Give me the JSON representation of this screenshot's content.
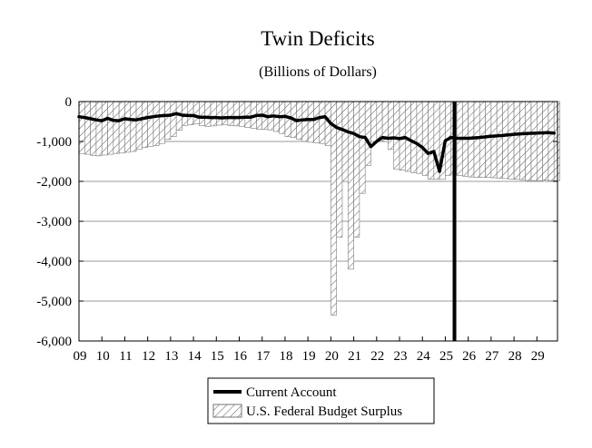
{
  "chart_data": {
    "type": "bar",
    "title": "Twin Deficits",
    "subtitle": "(Billions of Dollars)",
    "xlabel": "",
    "ylabel": "",
    "ylim": [
      -6000,
      0
    ],
    "yticks": [
      0,
      -1000,
      -2000,
      -3000,
      -4000,
      -5000,
      -6000
    ],
    "ytick_labels": [
      "0",
      "-1,000",
      "-2,000",
      "-3,000",
      "-4,000",
      "-5,000",
      "-6,000"
    ],
    "xlim": [
      2009.0,
      2029.9
    ],
    "xticks": [
      2009,
      2010,
      2011,
      2012,
      2013,
      2014,
      2015,
      2016,
      2017,
      2018,
      2019,
      2020,
      2021,
      2022,
      2023,
      2024,
      2025,
      2026,
      2027,
      2028,
      2029
    ],
    "xtick_labels": [
      "09",
      "10",
      "11",
      "12",
      "13",
      "14",
      "15",
      "16",
      "17",
      "18",
      "19",
      "20",
      "21",
      "22",
      "23",
      "24",
      "25",
      "26",
      "27",
      "28",
      "29"
    ],
    "grid": true,
    "legend_position": "bottom-center",
    "vertical_line_x": 2025.4,
    "series": [
      {
        "name": "Current Account",
        "kind": "line",
        "color": "#000000",
        "x": [
          2009.0,
          2009.25,
          2009.5,
          2009.75,
          2010.0,
          2010.25,
          2010.5,
          2010.75,
          2011.0,
          2011.25,
          2011.5,
          2011.75,
          2012.0,
          2012.25,
          2012.5,
          2012.75,
          2013.0,
          2013.25,
          2013.5,
          2013.75,
          2014.0,
          2014.25,
          2014.5,
          2014.75,
          2015.0,
          2015.25,
          2015.5,
          2015.75,
          2016.0,
          2016.25,
          2016.5,
          2016.75,
          2017.0,
          2017.25,
          2017.5,
          2017.75,
          2018.0,
          2018.25,
          2018.5,
          2018.75,
          2019.0,
          2019.25,
          2019.5,
          2019.75,
          2020.0,
          2020.25,
          2020.5,
          2020.75,
          2021.0,
          2021.25,
          2021.5,
          2021.75,
          2022.0,
          2022.25,
          2022.5,
          2022.75,
          2023.0,
          2023.25,
          2023.5,
          2023.75,
          2024.0,
          2024.25,
          2024.5,
          2024.75,
          2025.0,
          2025.25,
          2025.5,
          2025.75,
          2026.0,
          2026.5,
          2027.0,
          2027.5,
          2028.0,
          2028.5,
          2029.0,
          2029.5,
          2029.75
        ],
        "values": [
          -380,
          -400,
          -430,
          -460,
          -480,
          -420,
          -470,
          -480,
          -430,
          -450,
          -460,
          -430,
          -400,
          -380,
          -360,
          -350,
          -340,
          -300,
          -340,
          -350,
          -350,
          -390,
          -390,
          -400,
          -400,
          -410,
          -400,
          -400,
          -400,
          -390,
          -390,
          -350,
          -340,
          -380,
          -360,
          -380,
          -370,
          -410,
          -480,
          -460,
          -450,
          -450,
          -400,
          -380,
          -550,
          -650,
          -700,
          -760,
          -800,
          -880,
          -900,
          -1130,
          -1000,
          -900,
          -920,
          -910,
          -930,
          -900,
          -980,
          -1050,
          -1150,
          -1300,
          -1250,
          -1750,
          -980,
          -900,
          -920,
          -920,
          -920,
          -900,
          -870,
          -850,
          -820,
          -800,
          -790,
          -780,
          -790
        ]
      },
      {
        "name": "U.S. Federal Budget Surplus",
        "kind": "bar",
        "hatch": "diagonal",
        "x": [
          2009.0,
          2009.25,
          2009.5,
          2009.75,
          2010.0,
          2010.25,
          2010.5,
          2010.75,
          2011.0,
          2011.25,
          2011.5,
          2011.75,
          2012.0,
          2012.25,
          2012.5,
          2012.75,
          2013.0,
          2013.25,
          2013.5,
          2013.75,
          2014.0,
          2014.25,
          2014.5,
          2014.75,
          2015.0,
          2015.25,
          2015.5,
          2015.75,
          2016.0,
          2016.25,
          2016.5,
          2016.75,
          2017.0,
          2017.25,
          2017.5,
          2017.75,
          2018.0,
          2018.25,
          2018.5,
          2018.75,
          2019.0,
          2019.25,
          2019.5,
          2019.75,
          2020.0,
          2020.25,
          2020.5,
          2020.75,
          2021.0,
          2021.25,
          2021.5,
          2021.75,
          2022.0,
          2022.25,
          2022.5,
          2022.75,
          2023.0,
          2023.25,
          2023.5,
          2023.75,
          2024.0,
          2024.25,
          2024.5,
          2024.75,
          2025.0,
          2025.25,
          2025.5,
          2025.75,
          2026.0,
          2026.25,
          2026.5,
          2026.75,
          2027.0,
          2027.25,
          2027.5,
          2027.75,
          2028.0,
          2028.25,
          2028.5,
          2028.75,
          2029.0,
          2029.25,
          2029.5,
          2029.75
        ],
        "values": [
          -1300,
          -1320,
          -1350,
          -1360,
          -1340,
          -1320,
          -1300,
          -1290,
          -1270,
          -1250,
          -1200,
          -1150,
          -1120,
          -1100,
          -1050,
          -950,
          -880,
          -720,
          -600,
          -580,
          -560,
          -600,
          -620,
          -610,
          -590,
          -580,
          -600,
          -610,
          -620,
          -650,
          -670,
          -690,
          -700,
          -710,
          -750,
          -800,
          -880,
          -900,
          -950,
          -1000,
          -1020,
          -1030,
          -1050,
          -1100,
          -5350,
          -3400,
          -2000,
          -4200,
          -3400,
          -2300,
          -1600,
          -1000,
          -950,
          -1000,
          -1200,
          -1700,
          -1720,
          -1750,
          -1780,
          -1800,
          -1850,
          -1950,
          -1950,
          -1950,
          -1850,
          -1820,
          -1850,
          -1870,
          -1890,
          -1900,
          -1900,
          -1900,
          -1910,
          -1920,
          -1930,
          -1940,
          -1950,
          -1960,
          -1980,
          -1980,
          -1980,
          -1970,
          -1980,
          -1980
        ]
      }
    ]
  }
}
